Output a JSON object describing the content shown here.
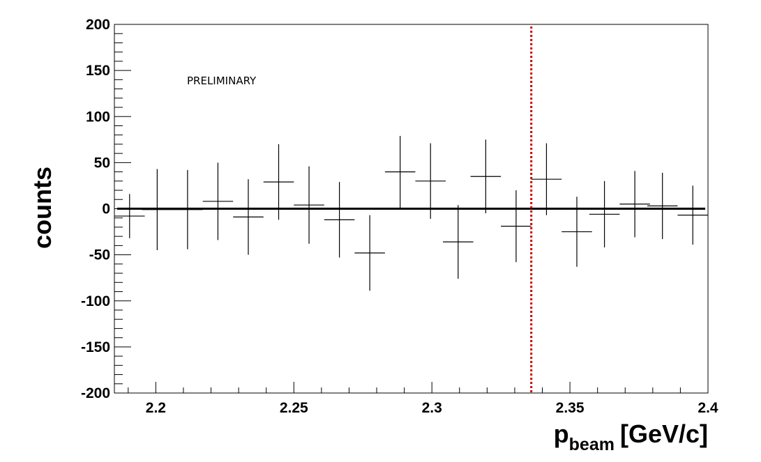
{
  "chart_data": {
    "type": "scatter",
    "xlabel": {
      "main": "p",
      "subscript": "beam",
      "unit": "[GeV/c]"
    },
    "ylabel": "counts",
    "annotation": "PRELIMINARY",
    "xlim": [
      2.185,
      2.4
    ],
    "ylim": [
      -200,
      200
    ],
    "x_ticks": [
      2.2,
      2.25,
      2.3,
      2.35,
      2.4
    ],
    "x_tick_labels": [
      "2.2",
      "2.25",
      "2.3",
      "2.35",
      "2.4"
    ],
    "y_ticks": [
      -200,
      -150,
      -100,
      -50,
      0,
      50,
      100,
      150,
      200
    ],
    "y_tick_labels": [
      "-200",
      "-150",
      "-100",
      "-50",
      "0",
      "50",
      "100",
      "150",
      "200"
    ],
    "bin_half_width": 0.0055,
    "fit_line": {
      "y": 0,
      "x_range": [
        2.186,
        2.399
      ],
      "color": "#000000"
    },
    "vertical_marker": {
      "x": 2.336,
      "style": "dotted",
      "color": "#cc0000"
    },
    "series": [
      {
        "points": [
          {
            "x": 2.1905,
            "y": -8,
            "err": 24
          },
          {
            "x": 2.2005,
            "y": -1,
            "err": 44
          },
          {
            "x": 2.2115,
            "y": -1,
            "err": 43
          },
          {
            "x": 2.2225,
            "y": 8,
            "err": 42
          },
          {
            "x": 2.2335,
            "y": -9,
            "err": 41
          },
          {
            "x": 2.2445,
            "y": 29,
            "err": 41
          },
          {
            "x": 2.2555,
            "y": 4,
            "err": 42
          },
          {
            "x": 2.2665,
            "y": -12,
            "err": 41
          },
          {
            "x": 2.2775,
            "y": -48,
            "err": 41
          },
          {
            "x": 2.2885,
            "y": 40,
            "err": 39
          },
          {
            "x": 2.2995,
            "y": 30,
            "err": 41
          },
          {
            "x": 2.3095,
            "y": -36,
            "err": 40
          },
          {
            "x": 2.3195,
            "y": 35,
            "err": 40
          },
          {
            "x": 2.3305,
            "y": -19,
            "err": 39
          },
          {
            "x": 2.3415,
            "y": 32,
            "err": 39
          },
          {
            "x": 2.3525,
            "y": -25,
            "err": 38
          },
          {
            "x": 2.3625,
            "y": -6,
            "err": 36
          },
          {
            "x": 2.3735,
            "y": 5,
            "err": 36
          },
          {
            "x": 2.3835,
            "y": 3,
            "err": 36
          },
          {
            "x": 2.3945,
            "y": -7,
            "err": 32
          }
        ]
      }
    ]
  }
}
